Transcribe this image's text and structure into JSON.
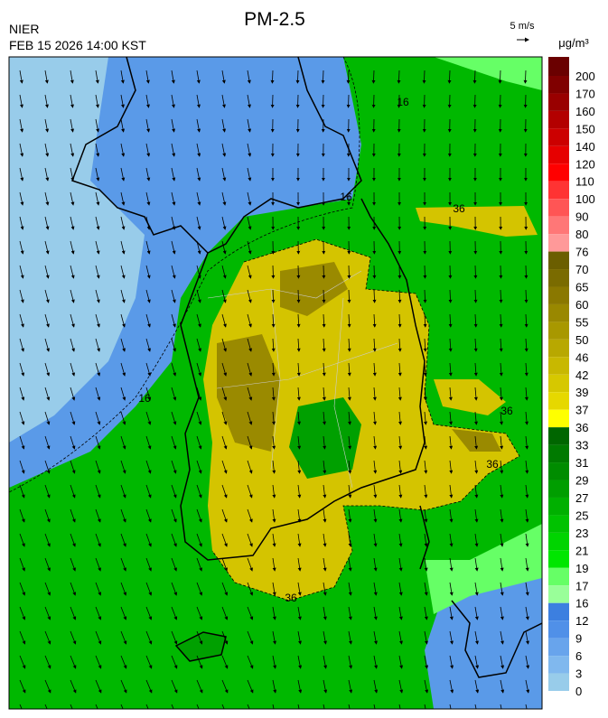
{
  "header": {
    "title": "PM-2.5",
    "agency": "NIER",
    "datetime": "FEB 15 2026 14:00 KST",
    "wind_scale": "5 m/s",
    "unit": "μg/m³"
  },
  "colorbar": {
    "labels": [
      200,
      170,
      160,
      150,
      140,
      120,
      110,
      100,
      90,
      80,
      76,
      70,
      65,
      60,
      55,
      50,
      46,
      42,
      39,
      37,
      36,
      33,
      31,
      29,
      27,
      25,
      23,
      21,
      19,
      17,
      16,
      12,
      9,
      6,
      3,
      0
    ],
    "colors": [
      "#6a0000",
      "#800000",
      "#990000",
      "#b30000",
      "#cc0000",
      "#e60000",
      "#ff0000",
      "#ff3333",
      "#ff5555",
      "#ff7777",
      "#ff9999",
      "#6b5e00",
      "#7a6b00",
      "#8a7800",
      "#998800",
      "#a89800",
      "#b8a800",
      "#c8b800",
      "#d6c800",
      "#e6d800",
      "#ffff00",
      "#006600",
      "#007a00",
      "#008c00",
      "#009e00",
      "#00b000",
      "#00c200",
      "#00d400",
      "#00e600",
      "#66ff66",
      "#99ff99",
      "#3c7fe0",
      "#5090e8",
      "#68a4ec",
      "#80b8ee",
      "#98ccea"
    ]
  },
  "map": {
    "contour_labels": [
      "36",
      "36",
      "36",
      "36",
      "16",
      "16",
      "16"
    ]
  }
}
